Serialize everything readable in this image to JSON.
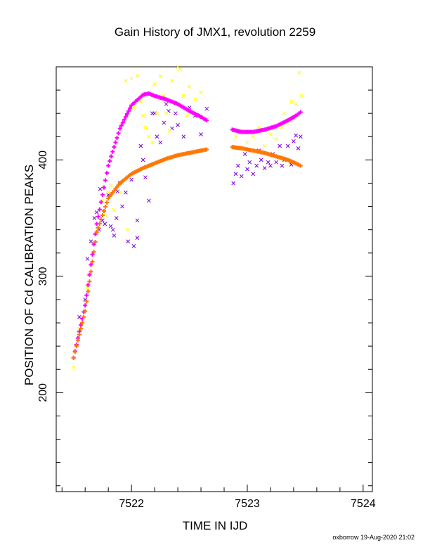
{
  "chart_data": {
    "type": "scatter",
    "title": "Gain History of JMX1, revolution 2259",
    "xlabel": "TIME IN IJD",
    "ylabel": "POSITION OF Cd CALIBRATION PEAKS",
    "xlim": [
      7521.35,
      7524.08
    ],
    "ylim": [
      115,
      480
    ],
    "xticks": [
      7522,
      7523,
      7524
    ],
    "yticks": [
      200,
      300,
      400
    ],
    "grid": false,
    "footer": "oxborrow 19-Aug-2020 21:02",
    "colors": {
      "magenta": "#ff00ff",
      "orange": "#ff7700",
      "purple": "#7a00e0",
      "yellow": "#ffff00"
    },
    "series": [
      {
        "marker": "+",
        "color": "#ff00ff",
        "segments": [
          {
            "x": [
              7521.5,
              7521.6,
              7521.7,
              7521.8,
              7521.9,
              7522.0,
              7522.1,
              7522.15,
              7522.2,
              7522.3,
              7522.4,
              7522.5,
              7522.6,
              7522.65
            ],
            "y": [
              230,
              275,
              345,
              395,
              427,
              447,
              456,
              457,
              455,
              452,
              448,
              442,
              437,
              434
            ]
          },
          {
            "x": [
              7522.87,
              7522.95,
              7523.05,
              7523.15,
              7523.25,
              7523.35,
              7523.42,
              7523.46
            ],
            "y": [
              426,
              424,
              424,
              426,
              429,
              434,
              438,
              441
            ]
          }
        ]
      },
      {
        "marker": "+",
        "color": "#ff7700",
        "segments": [
          {
            "x": [
              7521.5,
              7521.6,
              7521.7,
              7521.8,
              7521.9,
              7522.0,
              7522.1,
              7522.2,
              7522.3,
              7522.4,
              7522.5,
              7522.6,
              7522.65
            ],
            "y": [
              230,
              270,
              338,
              367,
              380,
              388,
              393,
              397,
              401,
              404,
              406,
              408,
              409
            ]
          },
          {
            "x": [
              7522.87,
              7522.95,
              7523.05,
              7523.15,
              7523.25,
              7523.35,
              7523.42,
              7523.46
            ],
            "y": [
              411,
              410,
              408,
              406,
              403,
              400,
              397,
              395
            ]
          }
        ]
      },
      {
        "marker": "x",
        "color": "#7a00e0",
        "x": [
          7521.55,
          7521.6,
          7521.62,
          7521.65,
          7521.68,
          7521.7,
          7521.72,
          7521.73,
          7521.75,
          7521.77,
          7521.8,
          7521.82,
          7521.84,
          7521.85,
          7521.87,
          7521.88,
          7521.9,
          7521.92,
          7521.95,
          7521.97,
          7522.0,
          7522.02,
          7522.05,
          7522.05,
          7522.08,
          7522.1,
          7522.12,
          7522.15,
          7522.18,
          7522.2,
          7522.22,
          7522.25,
          7522.28,
          7522.3,
          7522.32,
          7522.35,
          7522.38,
          7522.4,
          7522.45,
          7522.5,
          7522.55,
          7522.6,
          7522.65,
          7522.88,
          7522.9,
          7522.92,
          7522.95,
          7522.98,
          7523.0,
          7523.02,
          7523.05,
          7523.08,
          7523.1,
          7523.12,
          7523.15,
          7523.18,
          7523.2,
          7523.22,
          7523.25,
          7523.28,
          7523.3,
          7523.32,
          7523.35,
          7523.38,
          7523.4,
          7523.42,
          7523.44,
          7523.46
        ],
        "y": [
          265,
          280,
          315,
          330,
          350,
          355,
          340,
          375,
          348,
          345,
          370,
          343,
          340,
          335,
          350,
          373,
          380,
          360,
          372,
          330,
          383,
          326,
          333,
          348,
          412,
          400,
          385,
          365,
          440,
          440,
          420,
          415,
          432,
          448,
          442,
          427,
          440,
          430,
          420,
          445,
          438,
          422,
          444,
          380,
          388,
          395,
          386,
          405,
          392,
          398,
          388,
          395,
          408,
          400,
          393,
          398,
          395,
          405,
          398,
          412,
          395,
          400,
          412,
          396,
          416,
          421,
          410,
          420
        ]
      },
      {
        "marker": "x",
        "color": "#ffff00",
        "x": [
          7521.5,
          7521.55,
          7521.58,
          7521.62,
          7521.65,
          7521.7,
          7521.75,
          7521.78,
          7521.8,
          7521.82,
          7521.85,
          7521.9,
          7521.92,
          7521.95,
          7521.97,
          7522.0,
          7522.02,
          7522.05,
          7522.08,
          7522.1,
          7522.12,
          7522.15,
          7522.18,
          7522.2,
          7522.22,
          7522.25,
          7522.28,
          7522.3,
          7522.33,
          7522.35,
          7522.38,
          7522.4,
          7522.42,
          7522.45,
          7522.48,
          7522.5,
          7522.55,
          7522.6,
          7522.9,
          7522.95,
          7523.0,
          7523.05,
          7523.1,
          7523.15,
          7523.2,
          7523.25,
          7523.28,
          7523.3,
          7523.32,
          7523.35,
          7523.38,
          7523.4,
          7523.42,
          7523.45,
          7523.47
        ],
        "y": [
          222,
          255,
          262,
          290,
          310,
          340,
          365,
          352,
          372,
          378,
          357,
          372,
          380,
          468,
          340,
          470,
          445,
          472,
          450,
          438,
          428,
          420,
          415,
          465,
          440,
          472,
          455,
          440,
          425,
          468,
          448,
          480,
          478,
          455,
          438,
          463,
          452,
          458,
          420,
          425,
          415,
          420,
          428,
          412,
          422,
          418,
          430,
          428,
          440,
          432,
          450,
          436,
          448,
          475,
          455
        ]
      }
    ]
  }
}
